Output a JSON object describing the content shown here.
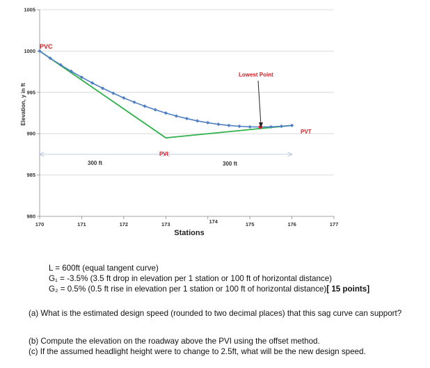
{
  "chart_data": {
    "type": "line",
    "ylabel": "Elevation, y in ft",
    "xlabel": "Stations",
    "ylim": [
      980,
      1005
    ],
    "yticks": [
      980,
      985,
      990,
      995,
      1000,
      1005
    ],
    "yticks_labels": [
      "980",
      "985",
      "990",
      "995",
      "1000",
      "1005"
    ],
    "xlim": [
      170,
      177
    ],
    "xticks": [
      170,
      171,
      172,
      173,
      174,
      175,
      176,
      177
    ],
    "xticks_labels": [
      "170",
      "171",
      "172",
      "173",
      "174",
      "175",
      "176",
      "177"
    ],
    "series": [
      {
        "name": "tangents",
        "color": "#2eb14a",
        "x": [
          170,
          173,
          176
        ],
        "y": [
          1000,
          989.5,
          991
        ]
      },
      {
        "name": "curve",
        "color": "#4f7fc2",
        "x": [
          170,
          170.25,
          170.5,
          170.75,
          171,
          171.25,
          171.5,
          171.75,
          172,
          172.25,
          172.5,
          172.75,
          173,
          173.25,
          173.5,
          173.75,
          174,
          174.25,
          174.5,
          174.75,
          175,
          175.25,
          175.5,
          175.75,
          176
        ],
        "y": [
          1000,
          999.14,
          998.33,
          997.55,
          996.83,
          996.14,
          995.5,
          994.9,
          994.33,
          993.81,
          993.33,
          992.9,
          992.5,
          992.14,
          991.83,
          991.55,
          991.33,
          991.14,
          991,
          990.9,
          990.83,
          990.81,
          990.83,
          990.9,
          991
        ]
      }
    ],
    "lowest_point": {
      "x": 175.25,
      "y": 990.81,
      "color": "#e0202a"
    },
    "dimension_arrows": [
      {
        "from": 170,
        "to": 173,
        "y": 987.5
      },
      {
        "from": 173,
        "to": 176,
        "y": 987.5
      }
    ],
    "annotations": {
      "pvc": "PVC",
      "pvi": "PVI",
      "pvt": "PVT",
      "lowest_point": "Lowest Point",
      "dist_left": "300 ft",
      "dist_right": "300 ft"
    }
  },
  "problem": {
    "line1": "L = 600ft (equal tangent curve)",
    "line2": "G₁ = -3.5% (3.5 ft drop in elevation per 1 station or 100 ft of horizontal distance)",
    "line3": "G₂ = 0.5% (0.5 ft rise in elevation per 1 station or 100 ft of horizontal distance)",
    "line3_points": "[ 15 points]",
    "question_a": "(a) What is the estimated design speed (rounded to two decimal places) that this sag curve can support?",
    "question_b": "(b) Compute the elevation on the roadway above the PVI using the offset method.",
    "question_c": "(c) If the assumed headlight height were to change to 2.5ft, what will be the new design speed."
  }
}
